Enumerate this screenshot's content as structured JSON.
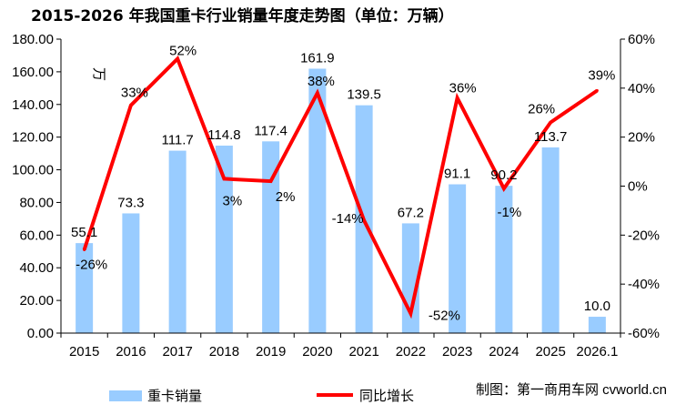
{
  "chart_data": {
    "type": "bar+line",
    "title": "2015-2026 年我国重卡行业销量年度走势图（单位：万辆）",
    "y_unit_label": "万",
    "categories": [
      "2015",
      "2016",
      "2017",
      "2018",
      "2019",
      "2020",
      "2021",
      "2022",
      "2023",
      "2024",
      "2025",
      "2026.1"
    ],
    "series": [
      {
        "name": "重卡销量",
        "kind": "bar",
        "axis": "left",
        "color": "#99ccff",
        "values": [
          55.1,
          73.3,
          111.7,
          114.8,
          117.4,
          161.9,
          139.5,
          67.2,
          91.1,
          90.2,
          113.7,
          10.0
        ],
        "labels": [
          "55.1",
          "73.3",
          "111.7",
          "114.8",
          "117.4",
          "161.9",
          "139.5",
          "67.2",
          "91.1",
          "90.2",
          "113.7",
          "10.0"
        ]
      },
      {
        "name": "同比增长",
        "kind": "line",
        "axis": "right",
        "color": "#ff0000",
        "values": [
          -26,
          33,
          52,
          3,
          2,
          38,
          -14,
          -52,
          36,
          -1,
          26,
          39
        ],
        "labels": [
          "-26%",
          "33%",
          "52%",
          "3%",
          "2%",
          "38%",
          "-14%",
          "-52%",
          "36%",
          "-1%",
          "26%",
          "39%"
        ]
      }
    ],
    "y_left": {
      "min": 0,
      "max": 180,
      "step": 20,
      "tick_labels": [
        "0.00",
        "20.00",
        "40.00",
        "60.00",
        "80.00",
        "100.00",
        "120.00",
        "140.00",
        "160.00",
        "180.00"
      ]
    },
    "y_right": {
      "min": -60,
      "max": 60,
      "step": 20,
      "tick_labels": [
        "-60%",
        "-40%",
        "-20%",
        "0%",
        "20%",
        "40%",
        "60%"
      ]
    },
    "grid": false,
    "legend_position": "bottom-left"
  },
  "credit": "制图：第一商用车网 cvworld.cn"
}
